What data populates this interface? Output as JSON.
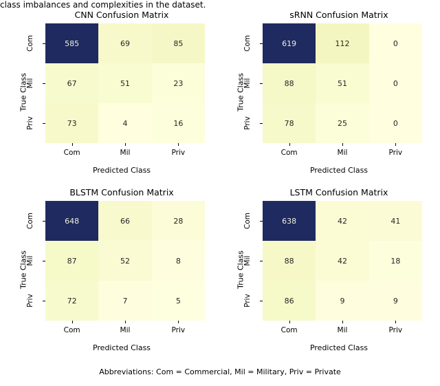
{
  "top_fragment": "class imbalances and complexities in the dataset.",
  "caption": "Abbreviations: Com = Commercial, Mil = Military, Priv = Private",
  "axis_labels": {
    "x": "Predicted Class",
    "y": "True Class"
  },
  "classes": [
    "Com",
    "Mil",
    "Priv"
  ],
  "colormap": {
    "low": "#ffffe0",
    "mid": "#eef3b4",
    "high": "#1f2a60"
  },
  "text_colors": {
    "dark": "#262626",
    "light": "#f0f0d8"
  },
  "panels": [
    {
      "title": "CNN Confusion Matrix",
      "data": [
        [
          585,
          69,
          85
        ],
        [
          67,
          51,
          23
        ],
        [
          73,
          4,
          16
        ]
      ],
      "vmax": 585
    },
    {
      "title": "sRNN Confusion Matrix",
      "data": [
        [
          619,
          112,
          0
        ],
        [
          88,
          51,
          0
        ],
        [
          78,
          25,
          0
        ]
      ],
      "vmax": 619
    },
    {
      "title": "BLSTM Confusion Matrix",
      "data": [
        [
          648,
          66,
          28
        ],
        [
          87,
          52,
          8
        ],
        [
          72,
          7,
          5
        ]
      ],
      "vmax": 648
    },
    {
      "title": "LSTM Confusion Matrix",
      "data": [
        [
          638,
          42,
          41
        ],
        [
          88,
          42,
          18
        ],
        [
          86,
          9,
          9
        ]
      ],
      "vmax": 638
    }
  ],
  "title_fontsize": 12.5,
  "label_fontsize": 11,
  "tick_fontsize": 10.5,
  "cell_fontsize": 11,
  "background_color": "#ffffff"
}
